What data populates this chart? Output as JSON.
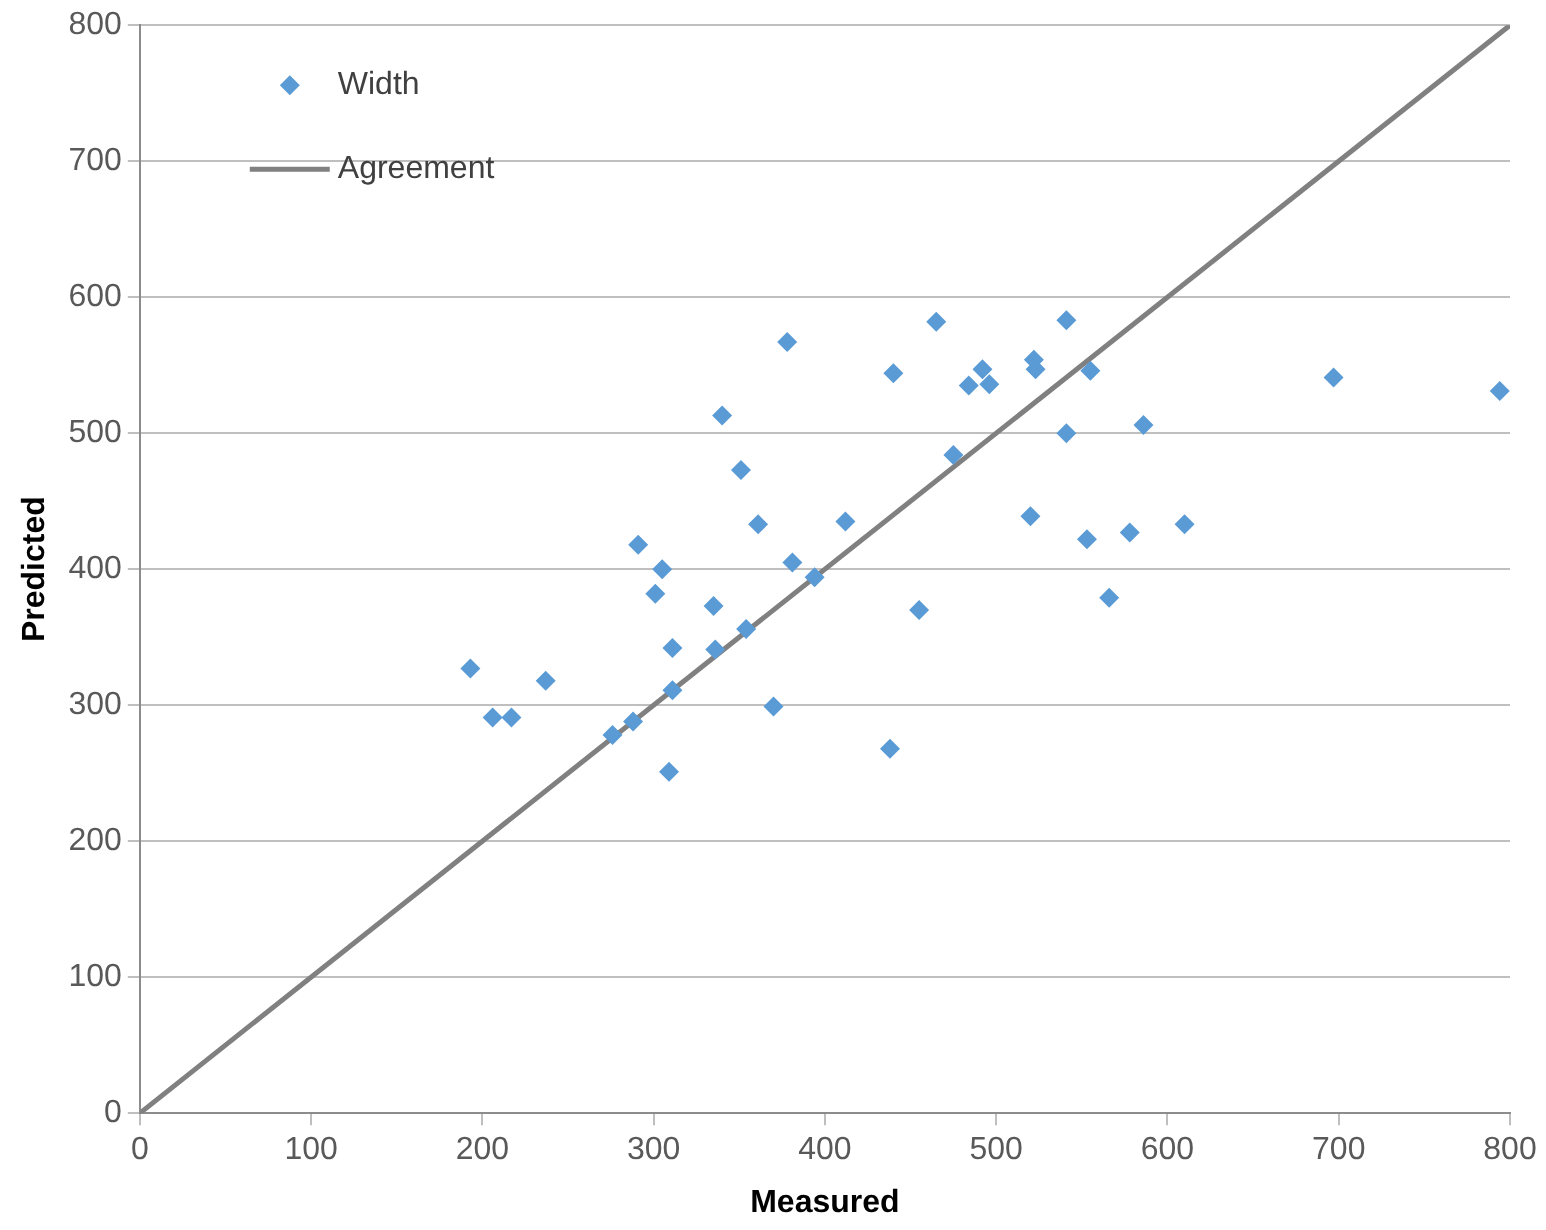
{
  "chart_data": {
    "type": "scatter",
    "xlabel": "Measured",
    "ylabel": "Predicted",
    "xlim": [
      0,
      800
    ],
    "xticks": [
      0,
      100,
      200,
      300,
      400,
      500,
      600,
      700,
      800
    ],
    "ylim": [
      0,
      800
    ],
    "yticks": [
      0,
      100,
      200,
      300,
      400,
      500,
      600,
      700,
      800
    ],
    "grid": "y",
    "legend": "top left",
    "marker": "diamond",
    "series": [
      {
        "name": "Width",
        "color": "#5b9bd5",
        "x": [
          193,
          206,
          217,
          237,
          276,
          288,
          291,
          305,
          301,
          311,
          311,
          309,
          335,
          336,
          340,
          351,
          354,
          361,
          370,
          378,
          381,
          394,
          412,
          440,
          438,
          455,
          465,
          475,
          484,
          492,
          496,
          522,
          523,
          541,
          541,
          555,
          520,
          553,
          578,
          586,
          610,
          566,
          697,
          794
        ],
        "values": [
          327,
          291,
          291,
          318,
          278,
          288,
          418,
          400,
          382,
          342,
          311,
          251,
          373,
          341,
          513,
          473,
          356,
          433,
          299,
          567,
          405,
          394,
          435,
          544,
          268,
          370,
          582,
          484,
          535,
          547,
          536,
          554,
          547,
          583,
          500,
          546,
          439,
          422,
          427,
          506,
          433,
          379,
          541,
          531
        ]
      },
      {
        "name": "Agreement",
        "type": "line",
        "color": "#808080",
        "marker": "none",
        "x": [
          0,
          800
        ],
        "values": [
          0,
          800
        ]
      }
    ]
  }
}
